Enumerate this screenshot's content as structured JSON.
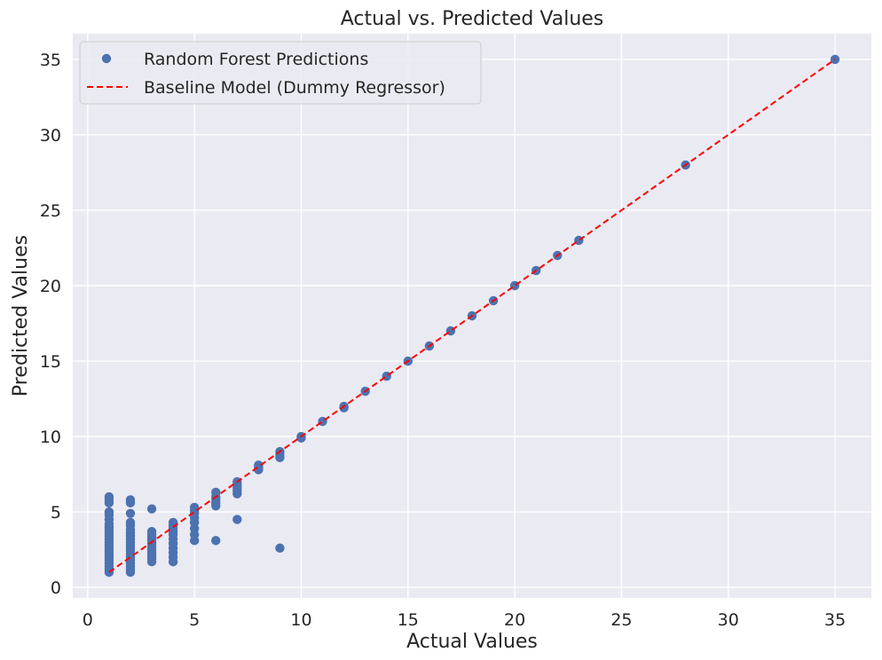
{
  "chart_data": {
    "type": "scatter",
    "title": "Actual vs. Predicted Values",
    "xlabel": "Actual Values",
    "ylabel": "Predicted Values",
    "xlim": [
      -0.7,
      36.7
    ],
    "ylim": [
      -0.7,
      36.7
    ],
    "xticks": [
      0,
      5,
      10,
      15,
      20,
      25,
      30,
      35
    ],
    "yticks": [
      0,
      5,
      10,
      15,
      20,
      25,
      30,
      35
    ],
    "grid": true,
    "legend_position": "top-left",
    "background_color": "#EAEAF2",
    "series": [
      {
        "name": "Random Forest Predictions",
        "kind": "scatter",
        "color": "#4C72B0",
        "points": [
          [
            1,
            1.0
          ],
          [
            1,
            1.2
          ],
          [
            1,
            1.4
          ],
          [
            1,
            1.6
          ],
          [
            1,
            1.8
          ],
          [
            1,
            2.0
          ],
          [
            1,
            2.2
          ],
          [
            1,
            2.4
          ],
          [
            1,
            2.6
          ],
          [
            1,
            2.8
          ],
          [
            1,
            3.0
          ],
          [
            1,
            3.2
          ],
          [
            1,
            3.4
          ],
          [
            1,
            3.6
          ],
          [
            1,
            3.8
          ],
          [
            1,
            4.0
          ],
          [
            1,
            4.2
          ],
          [
            1,
            4.5
          ],
          [
            1,
            4.8
          ],
          [
            1,
            5.0
          ],
          [
            1,
            5.6
          ],
          [
            1,
            5.8
          ],
          [
            1,
            6.0
          ],
          [
            2,
            1.0
          ],
          [
            2,
            1.2
          ],
          [
            2,
            1.4
          ],
          [
            2,
            1.6
          ],
          [
            2,
            1.8
          ],
          [
            2,
            2.0
          ],
          [
            2,
            2.2
          ],
          [
            2,
            2.4
          ],
          [
            2,
            2.6
          ],
          [
            2,
            2.8
          ],
          [
            2,
            3.0
          ],
          [
            2,
            3.2
          ],
          [
            2,
            3.4
          ],
          [
            2,
            3.6
          ],
          [
            2,
            3.8
          ],
          [
            2,
            4.1
          ],
          [
            2,
            4.3
          ],
          [
            2,
            4.9
          ],
          [
            2,
            5.6
          ],
          [
            2,
            5.8
          ],
          [
            3,
            1.7
          ],
          [
            3,
            1.9
          ],
          [
            3,
            2.1
          ],
          [
            3,
            2.3
          ],
          [
            3,
            2.5
          ],
          [
            3,
            2.7
          ],
          [
            3,
            2.9
          ],
          [
            3,
            3.1
          ],
          [
            3,
            3.3
          ],
          [
            3,
            3.5
          ],
          [
            3,
            3.7
          ],
          [
            3,
            5.2
          ],
          [
            4,
            1.7
          ],
          [
            4,
            2.0
          ],
          [
            4,
            2.3
          ],
          [
            4,
            2.6
          ],
          [
            4,
            2.9
          ],
          [
            4,
            3.2
          ],
          [
            4,
            3.5
          ],
          [
            4,
            3.7
          ],
          [
            4,
            3.9
          ],
          [
            4,
            4.1
          ],
          [
            4,
            4.3
          ],
          [
            5,
            3.1
          ],
          [
            5,
            3.5
          ],
          [
            5,
            3.9
          ],
          [
            5,
            4.3
          ],
          [
            5,
            4.6
          ],
          [
            5,
            4.9
          ],
          [
            5,
            5.1
          ],
          [
            5,
            5.3
          ],
          [
            6,
            3.1
          ],
          [
            6,
            5.4
          ],
          [
            6,
            5.6
          ],
          [
            6,
            5.8
          ],
          [
            6,
            6.0
          ],
          [
            6,
            6.3
          ],
          [
            7,
            4.5
          ],
          [
            7,
            6.2
          ],
          [
            7,
            6.4
          ],
          [
            7,
            6.6
          ],
          [
            7,
            6.8
          ],
          [
            7,
            7.0
          ],
          [
            8,
            7.8
          ],
          [
            8,
            7.9
          ],
          [
            8,
            8.0
          ],
          [
            8,
            8.1
          ],
          [
            9,
            2.6
          ],
          [
            9,
            8.6
          ],
          [
            9,
            8.8
          ],
          [
            9,
            9.0
          ],
          [
            10,
            9.9
          ],
          [
            10,
            10.0
          ],
          [
            11,
            11.0
          ],
          [
            12,
            11.9
          ],
          [
            12,
            12.0
          ],
          [
            13,
            13.0
          ],
          [
            14,
            14.0
          ],
          [
            15,
            15.0
          ],
          [
            16,
            16.0
          ],
          [
            17,
            17.0
          ],
          [
            18,
            18.0
          ],
          [
            19,
            19.0
          ],
          [
            20,
            20.0
          ],
          [
            21,
            21.0
          ],
          [
            22,
            22.0
          ],
          [
            23,
            23.0
          ],
          [
            28,
            28.0
          ],
          [
            35,
            35.0
          ]
        ]
      },
      {
        "name": "Baseline Model (Dummy Regressor)",
        "kind": "line",
        "style": "dashed",
        "color": "#FF0000",
        "x": [
          1,
          35
        ],
        "y": [
          1,
          35
        ]
      }
    ]
  }
}
